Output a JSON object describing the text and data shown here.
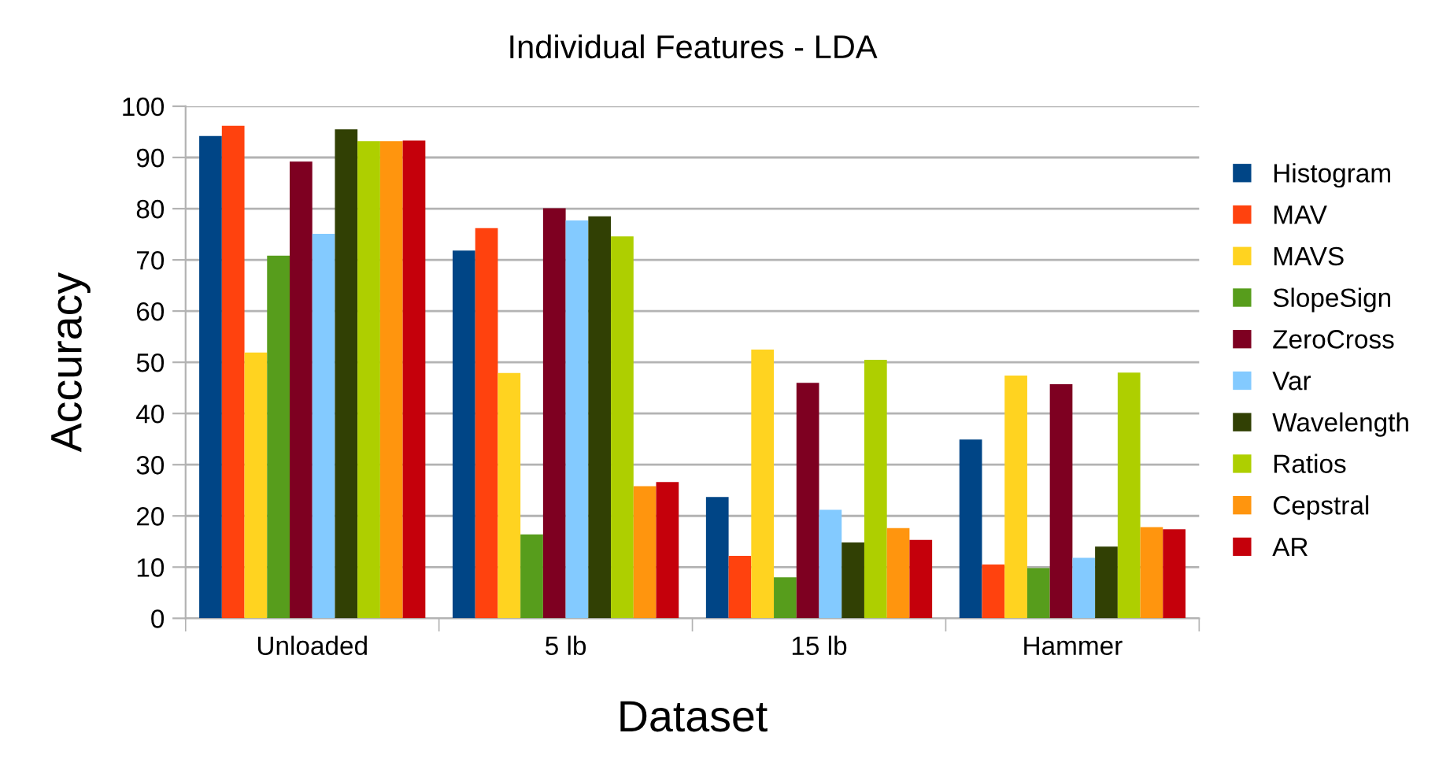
{
  "chart_data": {
    "type": "bar",
    "title": "Individual Features - LDA",
    "xlabel": "Dataset",
    "ylabel": "Accuracy",
    "categories": [
      "Unloaded",
      "5 lb",
      "15 lb",
      "Hammer"
    ],
    "series": [
      {
        "name": "Histogram",
        "color": "#004586",
        "values": [
          94.2,
          71.8,
          23.7,
          34.9
        ]
      },
      {
        "name": "MAV",
        "color": "#ff420e",
        "values": [
          96.2,
          76.2,
          12.2,
          10.5
        ]
      },
      {
        "name": "MAVS",
        "color": "#ffd320",
        "values": [
          51.9,
          47.9,
          52.5,
          47.4
        ]
      },
      {
        "name": "SlopeSign",
        "color": "#579d1c",
        "values": [
          70.8,
          16.4,
          8.0,
          9.8
        ]
      },
      {
        "name": "ZeroCross",
        "color": "#7e0021",
        "values": [
          89.2,
          80.1,
          46.0,
          45.7
        ]
      },
      {
        "name": "Var",
        "color": "#83caff",
        "values": [
          75.1,
          77.7,
          21.2,
          11.8
        ]
      },
      {
        "name": "Wavelength",
        "color": "#314004",
        "values": [
          95.5,
          78.5,
          14.8,
          14.0
        ]
      },
      {
        "name": "Ratios",
        "color": "#aecf00",
        "values": [
          93.2,
          74.6,
          50.5,
          48.0
        ]
      },
      {
        "name": "Cepstral",
        "color": "#ff950e",
        "values": [
          93.2,
          25.8,
          17.6,
          17.8
        ]
      },
      {
        "name": "AR",
        "color": "#c5000b",
        "values": [
          93.3,
          26.6,
          15.3,
          17.4
        ]
      }
    ],
    "ylim": [
      0,
      100
    ],
    "yticks": [
      0,
      10,
      20,
      30,
      40,
      50,
      60,
      70,
      80,
      90,
      100
    ],
    "grid": "y",
    "legend": "right"
  }
}
